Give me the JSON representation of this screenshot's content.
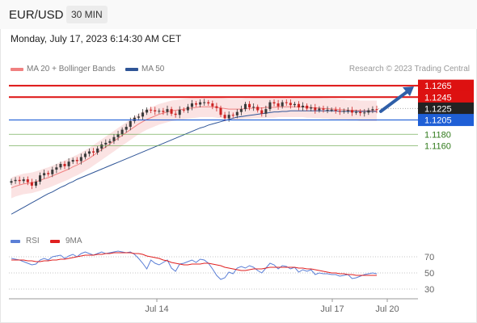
{
  "header": {
    "symbol": "EUR/USD",
    "timeframe": "30 MIN"
  },
  "timestamp": "Monday, July 17, 2023 6:14:30 AM CET",
  "legend": {
    "main": [
      {
        "label": "MA 20 + Bollinger Bands",
        "color": "#f08080"
      },
      {
        "label": "MA 50",
        "color": "#2f5597"
      }
    ],
    "indicator": [
      {
        "label": "RSI",
        "color": "#5b7fd6"
      },
      {
        "label": "9MA",
        "color": "#e02020"
      }
    ]
  },
  "copyright": "Research © 2023 Trading Central",
  "colors": {
    "up": "#3a3a3a",
    "down": "#cc2222",
    "resistance": "#dd1111",
    "support": "#1f5fd6",
    "target": "#5a9e3a",
    "arrow": "#2f5fa8",
    "band": "#fbe3e3"
  },
  "chart_data": [
    {
      "type": "candlestick",
      "title": "EUR/USD 30 MIN",
      "x_labels": [
        "Jul 14",
        "Jul 17",
        "Jul 20"
      ],
      "ylim": [
        1.1005,
        1.1285
      ],
      "closes": [
        1.1098,
        1.11,
        1.1098,
        1.1101,
        1.1096,
        1.109,
        1.1097,
        1.1108,
        1.1112,
        1.111,
        1.1118,
        1.1122,
        1.1128,
        1.1124,
        1.1132,
        1.1135,
        1.1133,
        1.114,
        1.1146,
        1.115,
        1.1148,
        1.1155,
        1.1162,
        1.1165,
        1.1168,
        1.1175,
        1.118,
        1.1188,
        1.1193,
        1.1203,
        1.1209,
        1.1211,
        1.1218,
        1.1223,
        1.1222,
        1.122,
        1.1221,
        1.1219,
        1.1224,
        1.1216,
        1.1214,
        1.1223,
        1.1222,
        1.1228,
        1.1234,
        1.1232,
        1.1236,
        1.1236,
        1.1234,
        1.1229,
        1.1226,
        1.1214,
        1.1208,
        1.1214,
        1.1213,
        1.1219,
        1.1224,
        1.1233,
        1.1227,
        1.1228,
        1.1222,
        1.1216,
        1.1224,
        1.1236,
        1.1234,
        1.1229,
        1.1236,
        1.1235,
        1.1231,
        1.1233,
        1.1227,
        1.123,
        1.1225,
        1.1227,
        1.1222,
        1.1225,
        1.1223,
        1.1223,
        1.1223,
        1.1221,
        1.122,
        1.1221,
        1.1222,
        1.1218,
        1.1219,
        1.1217,
        1.1218,
        1.1222,
        1.1224,
        1.1223
      ],
      "ma20": [
        1.1086,
        1.1089,
        1.1091,
        1.1093,
        1.1094,
        1.1095,
        1.1097,
        1.1099,
        1.1102,
        1.1104,
        1.1107,
        1.111,
        1.1113,
        1.1116,
        1.1119,
        1.1123,
        1.1126,
        1.113,
        1.1134,
        1.1138,
        1.1143,
        1.1148,
        1.1153,
        1.1158,
        1.1163,
        1.1168,
        1.1173,
        1.1178,
        1.1183,
        1.1188,
        1.1193,
        1.1198,
        1.1202,
        1.1206,
        1.1209,
        1.1212,
        1.1215,
        1.1217,
        1.1219,
        1.1221,
        1.1222,
        1.1223,
        1.1224,
        1.1225,
        1.1226,
        1.1227,
        1.1228,
        1.1228,
        1.1228,
        1.1228,
        1.1227,
        1.1226,
        1.1225,
        1.1224,
        1.1224,
        1.1224,
        1.1224,
        1.1225,
        1.1225,
        1.1226,
        1.1226,
        1.1226,
        1.1227,
        1.1227,
        1.1227,
        1.1228,
        1.1228,
        1.1228,
        1.1228,
        1.1228,
        1.1228,
        1.1228,
        1.1227,
        1.1227,
        1.1226,
        1.1226,
        1.1225,
        1.1225,
        1.1224,
        1.1224,
        1.1223,
        1.1223,
        1.1222,
        1.1222,
        1.1222,
        1.1221,
        1.1221,
        1.1221,
        1.1221,
        1.1221
      ],
      "ma50": [
        1.104,
        1.1044,
        1.1048,
        1.1052,
        1.1056,
        1.106,
        1.1064,
        1.1068,
        1.1072,
        1.1076,
        1.1079,
        1.1083,
        1.1087,
        1.109,
        1.1094,
        1.1097,
        1.1101,
        1.1104,
        1.1107,
        1.111,
        1.1113,
        1.1116,
        1.1119,
        1.1122,
        1.1125,
        1.1128,
        1.1131,
        1.1134,
        1.1137,
        1.114,
        1.1143,
        1.1146,
        1.1149,
        1.1152,
        1.1155,
        1.1158,
        1.1161,
        1.1164,
        1.1167,
        1.117,
        1.1173,
        1.1176,
        1.1179,
        1.1182,
        1.1185,
        1.1188,
        1.1191,
        1.1193,
        1.1196,
        1.1198,
        1.12,
        1.1202,
        1.1204,
        1.1206,
        1.1208,
        1.121,
        1.1211,
        1.1212,
        1.1213,
        1.1214,
        1.1215,
        1.1216,
        1.1217,
        1.1218,
        1.1219,
        1.1219,
        1.122,
        1.122,
        1.1221,
        1.1221,
        1.1221,
        1.1221,
        1.1221,
        1.1221,
        1.1221,
        1.1221,
        1.1221,
        1.1221,
        1.1221,
        1.1221,
        1.122,
        1.122,
        1.122,
        1.122,
        1.122,
        1.122,
        1.122,
        1.122,
        1.122,
        1.122
      ],
      "bollinger_width": 0.0018,
      "levels": [
        {
          "value": 1.1265,
          "label": "1.1265",
          "kind": "resistance"
        },
        {
          "value": 1.1245,
          "label": "1.1245",
          "kind": "resistance"
        },
        {
          "value": 1.1225,
          "label": "1.1225",
          "kind": "current"
        },
        {
          "value": 1.1205,
          "label": "1.1205",
          "kind": "support"
        },
        {
          "value": 1.118,
          "label": "1.1180",
          "kind": "target"
        },
        {
          "value": 1.116,
          "label": "1.1160",
          "kind": "target"
        }
      ]
    },
    {
      "type": "line",
      "title": "RSI",
      "ylim": [
        20,
        80
      ],
      "yticks": [
        70,
        50,
        30
      ],
      "series": [
        {
          "name": "RSI",
          "values": [
            68,
            67,
            66,
            64,
            62,
            60,
            61,
            66,
            68,
            66,
            70,
            71,
            72,
            68,
            71,
            73,
            70,
            74,
            76,
            74,
            72,
            74,
            76,
            74,
            75,
            76,
            77,
            76,
            75,
            76,
            73,
            68,
            62,
            55,
            66,
            62,
            60,
            63,
            66,
            56,
            52,
            61,
            62,
            64,
            66,
            63,
            67,
            66,
            62,
            55,
            47,
            42,
            44,
            51,
            49,
            56,
            58,
            56,
            59,
            57,
            53,
            50,
            56,
            62,
            60,
            55,
            59,
            58,
            55,
            57,
            51,
            54,
            52,
            54,
            48,
            50,
            49,
            49,
            48,
            48,
            46,
            47,
            48,
            43,
            44,
            46,
            48,
            49,
            50,
            49
          ]
        },
        {
          "name": "9MA",
          "values": [
            66,
            66,
            66,
            66,
            65,
            65,
            64,
            64,
            65,
            65,
            66,
            66,
            67,
            67,
            68,
            69,
            70,
            71,
            72,
            72,
            72,
            73,
            73,
            74,
            74,
            75,
            75,
            75,
            75,
            75,
            74,
            74,
            73,
            71,
            70,
            69,
            68,
            66,
            65,
            63,
            62,
            61,
            60,
            60,
            61,
            61,
            61,
            62,
            62,
            61,
            60,
            59,
            57,
            56,
            55,
            54,
            53,
            53,
            54,
            55,
            55,
            55,
            56,
            57,
            57,
            57,
            57,
            57,
            57,
            57,
            56,
            56,
            55,
            55,
            54,
            53,
            52,
            51,
            50,
            50,
            49,
            49,
            48,
            48,
            47,
            47,
            47,
            47,
            47,
            47
          ]
        }
      ]
    }
  ]
}
